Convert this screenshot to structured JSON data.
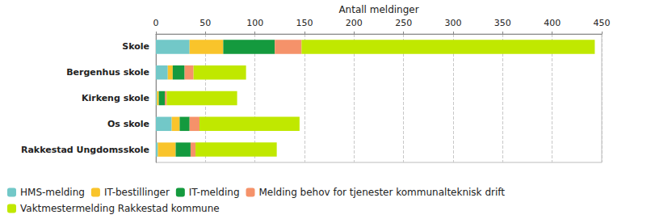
{
  "chart_data": {
    "type": "bar",
    "orientation": "horizontal",
    "stacked": true,
    "x_label": "Antall meldinger",
    "categories": [
      "Skole",
      "Bergenhus skole",
      "Kirkeng skole",
      "Os skole",
      "Rakkestad Ungdomsskole"
    ],
    "series": [
      {
        "name": "HMS-melding",
        "color": "#72c8c8",
        "values": [
          34,
          12,
          1,
          16,
          2
        ]
      },
      {
        "name": "IT-bestillinger",
        "color": "#f9c42b",
        "values": [
          34,
          5,
          2,
          8,
          18
        ]
      },
      {
        "name": "IT-melding",
        "color": "#149a3e",
        "values": [
          52,
          12,
          6,
          10,
          15
        ]
      },
      {
        "name": "Melding behov for tjenester kommunalteknisk drift",
        "color": "#f5926a",
        "values": [
          27,
          9,
          2,
          10,
          5
        ]
      },
      {
        "name": "Vaktmestermelding Rakkestad kommune",
        "color": "#c0e800",
        "values": [
          296,
          53,
          71,
          101,
          82
        ]
      }
    ],
    "xlim": [
      0,
      450
    ],
    "xticks": [
      0,
      50,
      100,
      150,
      200,
      250,
      300,
      350,
      400,
      450
    ],
    "grid": true,
    "legend": "bottom-left"
  }
}
